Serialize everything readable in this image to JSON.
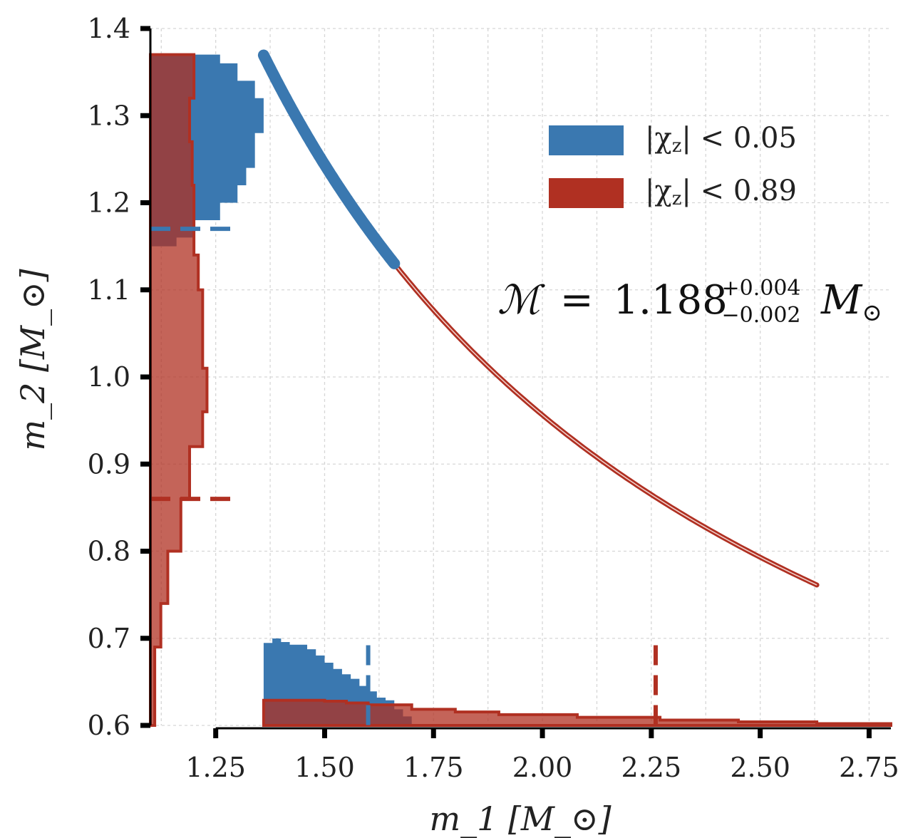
{
  "chart_data": {
    "type": "scatter",
    "xlabel": "m_1 [M_⊙]",
    "ylabel": "m_2 [M_⊙]",
    "xlim": [
      1.1,
      2.8
    ],
    "ylim": [
      0.6,
      1.4
    ],
    "xticks": [
      "1.25",
      "1.50",
      "1.75",
      "2.00",
      "2.25",
      "2.50",
      "2.75"
    ],
    "yticks": [
      "0.6",
      "0.7",
      "0.8",
      "0.9",
      "1.0",
      "1.1",
      "1.2",
      "1.3",
      "1.4"
    ],
    "grid": true,
    "legend_position": "top-right",
    "annotation": {
      "symbol": "ℳ",
      "equals": "=",
      "value": "1.188",
      "upper": "+0.004",
      "lower": "−0.002",
      "unit": "M",
      "unit_sub": "⊙"
    },
    "chirp_mass": 1.188,
    "series": [
      {
        "name": "|χ_z| < 0.05",
        "legend_label": "|χ",
        "legend_sub": "z",
        "legend_rest": "| < 0.05",
        "color": "#3a78b0",
        "m1_range": [
          1.36,
          1.66
        ],
        "m1_90pct_upper": 1.6,
        "m2_90pct_lower": 1.17,
        "m1_histogram": {
          "bin_edges": [
            1.36,
            1.38,
            1.4,
            1.42,
            1.44,
            1.46,
            1.48,
            1.5,
            1.52,
            1.54,
            1.56,
            1.58,
            1.6,
            1.62,
            1.64,
            1.66,
            1.68,
            1.7
          ],
          "heights": [
            0.092,
            0.097,
            0.093,
            0.09,
            0.09,
            0.085,
            0.078,
            0.07,
            0.063,
            0.057,
            0.052,
            0.044,
            0.038,
            0.031,
            0.028,
            0.018,
            0.01
          ]
        },
        "m2_histogram": {
          "bin_edges": [
            1.15,
            1.16,
            1.18,
            1.2,
            1.22,
            1.24,
            1.26,
            1.28,
            1.3,
            1.32,
            1.34,
            1.36,
            1.37
          ],
          "widths": [
            0.03,
            0.05,
            0.08,
            0.1,
            0.11,
            0.12,
            0.12,
            0.13,
            0.13,
            0.12,
            0.1,
            0.08
          ]
        }
      },
      {
        "name": "|χ_z| < 0.89",
        "legend_label": "|χ",
        "legend_sub": "z",
        "legend_rest": "| < 0.89",
        "color": "#b03022",
        "m1_range": [
          1.66,
          2.63
        ],
        "m1_90pct_upper": 2.26,
        "m2_90pct_lower": 0.86,
        "m1_histogram": {
          "bin_edges": [
            1.36,
            1.5,
            1.55,
            1.6,
            1.7,
            1.8,
            1.9,
            2.08,
            2.27,
            2.45,
            2.63,
            2.8
          ],
          "heights": [
            0.028,
            0.027,
            0.025,
            0.023,
            0.018,
            0.015,
            0.012,
            0.009,
            0.006,
            0.004,
            0.002
          ]
        },
        "m2_histogram": {
          "bin_edges": [
            0.6,
            0.69,
            0.74,
            0.8,
            0.86,
            0.92,
            0.96,
            1.01,
            1.05,
            1.1,
            1.14,
            1.18,
            1.22,
            1.27,
            1.32,
            1.37
          ],
          "widths": [
            0.005,
            0.012,
            0.02,
            0.035,
            0.045,
            0.06,
            0.065,
            0.06,
            0.06,
            0.055,
            0.05,
            0.05,
            0.048,
            0.045,
            0.05
          ]
        }
      }
    ]
  }
}
